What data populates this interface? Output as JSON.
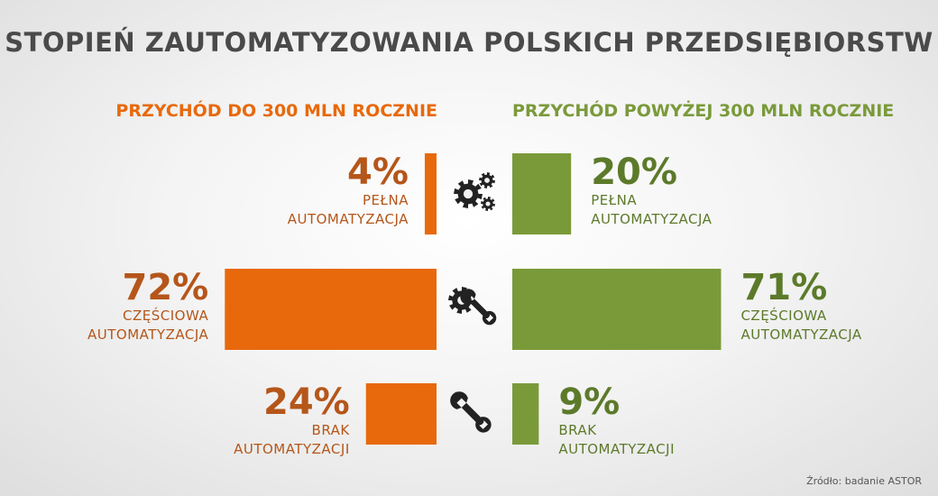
{
  "title": "STOPIEŃ ZAUTOMATYZOWANIA POLSKICH PRZEDSIĘBIORSTW",
  "source": "Źródło: badanie ASTOR",
  "colors": {
    "left": "#e8690c",
    "left_text": "#b5561a",
    "right": "#7a9a3a",
    "right_text": "#5c7a2a",
    "title": "#4a4a4a"
  },
  "chart_data": {
    "type": "bar",
    "title": "STOPIEŃ ZAUTOMATYZOWANIA POLSKICH PRZEDSIĘBIORSTW",
    "series": [
      {
        "name": "PRZYCHÓD DO 300 MLN ROCZNIE",
        "values": [
          4,
          72,
          24
        ]
      },
      {
        "name": "PRZYCHÓD POWYŻEJ 300 MLN ROCZNIE",
        "values": [
          20,
          71,
          9
        ]
      }
    ],
    "categories": [
      {
        "line1": "PEŁNA",
        "line2": "AUTOMATYZACJA",
        "icon": "gears-icon"
      },
      {
        "line1": "CZĘŚCIOWA",
        "line2": "AUTOMATYZACJA",
        "icon": "gear-wrench-icon"
      },
      {
        "line1": "BRAK",
        "line2": "AUTOMATYZACJI",
        "icon": "wrench-icon"
      }
    ],
    "unit": "%"
  }
}
